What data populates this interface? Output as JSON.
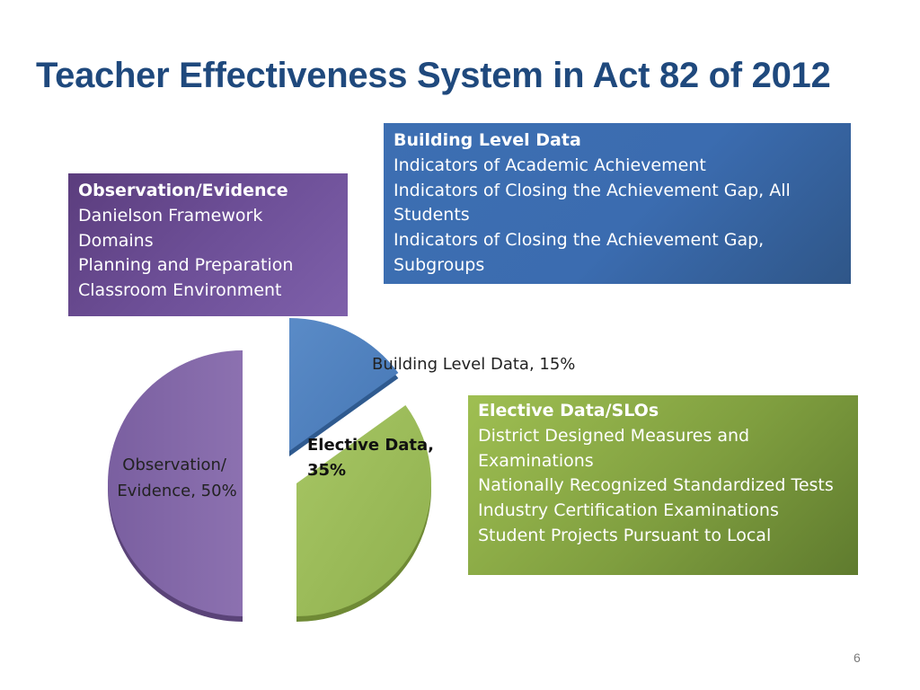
{
  "title": "Teacher Effectiveness System in Act 82 of 2012",
  "page_number": "6",
  "boxes": {
    "observation": {
      "heading": "Observation/Evidence",
      "lines": [
        "Danielson Framework",
        "Domains",
        "Planning and Preparation",
        "Classroom Environment"
      ]
    },
    "building": {
      "heading": "Building Level Data",
      "lines": [
        "Indicators of Academic Achievement",
        "Indicators of Closing the Achievement Gap, All",
        "Students",
        "Indicators of Closing the Achievement Gap,",
        "Subgroups"
      ]
    },
    "elective": {
      "heading": "Elective Data/SLOs",
      "lines": [
        "District Designed Measures and",
        "Examinations",
        "Nationally Recognized Standardized Tests",
        "Industry Certification Examinations",
        "Student Projects Pursuant to Local"
      ]
    }
  },
  "colors": {
    "observation": "#8064a2",
    "building": "#4f81bd",
    "elective": "#9bbb59"
  },
  "chart_data": {
    "type": "pie",
    "title": "",
    "slices": [
      {
        "name": "Building Level Data",
        "value": 15,
        "label": "Building Level Data,  15%"
      },
      {
        "name": "Elective Data",
        "value": 35,
        "label_lines": [
          "Elective Data,",
          "35%"
        ]
      },
      {
        "name": "Observation/ Evidence",
        "value": 50,
        "label_lines": [
          "Observation/",
          "Evidence,  50%"
        ]
      }
    ],
    "exploded": true,
    "style": "3d"
  }
}
